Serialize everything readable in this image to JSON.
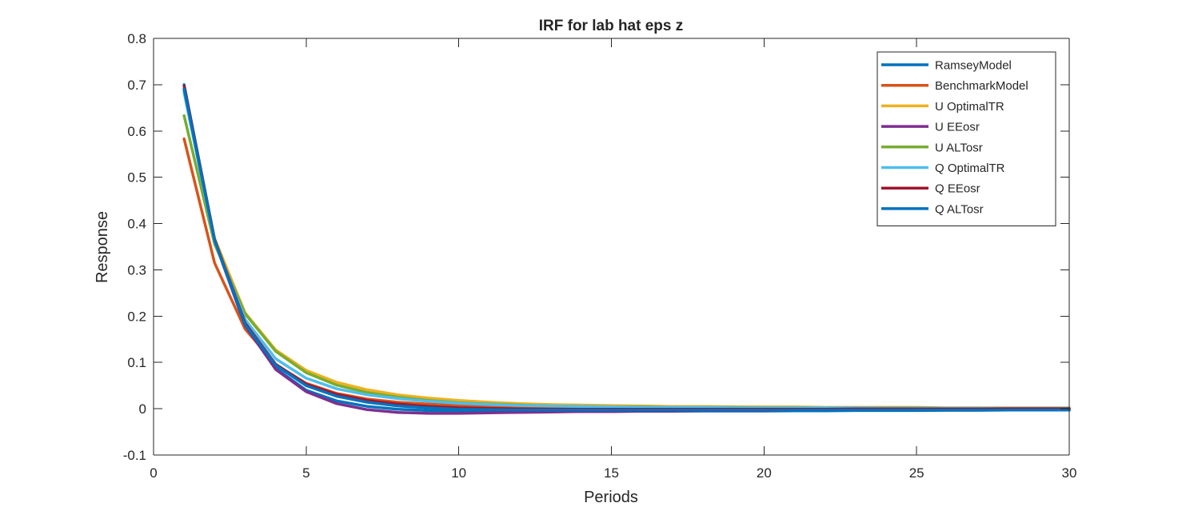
{
  "chart_data": {
    "type": "line",
    "title": "IRF for lab hat eps z",
    "xlabel": "Periods",
    "ylabel": "Response",
    "xlim": [
      0,
      30
    ],
    "ylim": [
      -0.1,
      0.8
    ],
    "xticks": [
      0,
      5,
      10,
      15,
      20,
      25,
      30
    ],
    "yticks": [
      -0.1,
      0,
      0.1,
      0.2,
      0.3,
      0.4,
      0.5,
      0.6,
      0.7,
      0.8
    ],
    "xtick_labels": [
      "0",
      "5",
      "10",
      "15",
      "20",
      "25",
      "30"
    ],
    "ytick_labels": [
      "-0.1",
      "0",
      "0.1",
      "0.2",
      "0.3",
      "0.4",
      "0.5",
      "0.6",
      "0.7",
      "0.8"
    ],
    "grid": false,
    "legend_position": "top-right",
    "x": [
      1,
      2,
      3,
      4,
      5,
      6,
      7,
      8,
      9,
      10,
      11,
      12,
      13,
      14,
      15,
      16,
      17,
      18,
      19,
      20,
      21,
      22,
      23,
      24,
      25,
      26,
      27,
      28,
      29,
      30
    ],
    "series": [
      {
        "name": "RamseyModel",
        "color": "#0072BD",
        "values": [
          0.7,
          0.366,
          0.178,
          0.087,
          0.04,
          0.017,
          0.005,
          -0.001,
          -0.004,
          -0.005,
          -0.006,
          -0.006,
          -0.006,
          -0.006,
          -0.006,
          -0.0055,
          -0.0055,
          -0.005,
          -0.005,
          -0.005,
          -0.0045,
          -0.0045,
          -0.004,
          -0.004,
          -0.004,
          -0.0035,
          -0.0035,
          -0.003,
          -0.003,
          -0.003
        ]
      },
      {
        "name": "BenchmarkModel",
        "color": "#D95319",
        "values": [
          0.583,
          0.315,
          0.172,
          0.095,
          0.055,
          0.033,
          0.021,
          0.014,
          0.01,
          0.007,
          0.005,
          0.004,
          0.003,
          0.003,
          0.002,
          0.002,
          0.002,
          0.002,
          0.001,
          0.001,
          0.001,
          0.001,
          0.001,
          0.001,
          0.001,
          0.001,
          0.001,
          0.001,
          0.001,
          0.001
        ]
      },
      {
        "name": "U OptimalTR",
        "color": "#EDB120",
        "values": [
          0.686,
          0.368,
          0.207,
          0.127,
          0.083,
          0.057,
          0.041,
          0.03,
          0.023,
          0.018,
          0.014,
          0.011,
          0.009,
          0.008,
          0.007,
          0.006,
          0.005,
          0.005,
          0.004,
          0.004,
          0.004,
          0.003,
          0.003,
          0.003,
          0.003,
          0.002,
          0.002,
          0.002,
          0.002,
          0.002
        ]
      },
      {
        "name": "U EEosr",
        "color": "#7E2F8E",
        "values": [
          0.69,
          0.362,
          0.18,
          0.085,
          0.037,
          0.011,
          -0.002,
          -0.008,
          -0.01,
          -0.01,
          -0.009,
          -0.008,
          -0.007,
          -0.006,
          -0.006,
          -0.005,
          -0.005,
          -0.004,
          -0.004,
          -0.004,
          -0.003,
          -0.003,
          -0.003,
          -0.003,
          -0.002,
          -0.002,
          -0.002,
          -0.002,
          -0.002,
          -0.002
        ]
      },
      {
        "name": "U ALTosr",
        "color": "#77AC30",
        "values": [
          0.633,
          0.356,
          0.205,
          0.124,
          0.078,
          0.051,
          0.035,
          0.025,
          0.018,
          0.013,
          0.01,
          0.008,
          0.006,
          0.005,
          0.004,
          0.004,
          0.003,
          0.003,
          0.003,
          0.002,
          0.002,
          0.002,
          0.002,
          0.002,
          0.002,
          0.001,
          0.001,
          0.001,
          0.001,
          0.001
        ]
      },
      {
        "name": "Q OptimalTR",
        "color": "#4DBEEE",
        "values": [
          0.683,
          0.362,
          0.193,
          0.108,
          0.066,
          0.043,
          0.03,
          0.022,
          0.016,
          0.012,
          0.009,
          0.007,
          0.006,
          0.005,
          0.004,
          0.003,
          0.003,
          0.003,
          0.002,
          0.002,
          0.002,
          0.002,
          0.002,
          0.001,
          0.001,
          0.001,
          0.001,
          0.001,
          0.001,
          0.001
        ]
      },
      {
        "name": "Q EEosr",
        "color": "#A2142F",
        "values": [
          0.697,
          0.366,
          0.185,
          0.096,
          0.053,
          0.031,
          0.018,
          0.01,
          0.005,
          0.002,
          0.0005,
          -0.0005,
          -0.001,
          -0.001,
          -0.001,
          -0.001,
          -0.001,
          -0.001,
          -0.001,
          -0.001,
          -0.001,
          -0.001,
          -0.0005,
          -0.0005,
          -0.0005,
          -0.0005,
          -0.0005,
          0,
          0,
          0
        ]
      },
      {
        "name": "Q ALTosr",
        "color": "#0072BD",
        "values": [
          0.691,
          0.364,
          0.182,
          0.094,
          0.05,
          0.027,
          0.014,
          0.006,
          0.002,
          -0.001,
          -0.002,
          -0.003,
          -0.003,
          -0.003,
          -0.003,
          -0.003,
          -0.003,
          -0.003,
          -0.003,
          -0.003,
          -0.003,
          -0.003,
          -0.003,
          -0.003,
          -0.003,
          -0.003,
          -0.003,
          -0.003,
          -0.003,
          -0.003
        ]
      }
    ]
  }
}
